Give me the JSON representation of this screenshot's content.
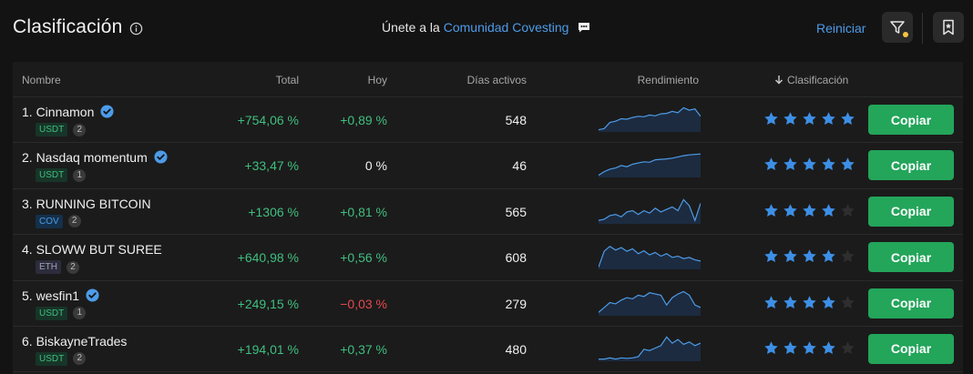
{
  "header": {
    "title": "Clasificación",
    "community_prefix": "Únete a la",
    "community_link": "Comunidad Covesting",
    "reset_label": "Reiniciar"
  },
  "columns": {
    "name": "Nombre",
    "total": "Total",
    "today": "Hoy",
    "days": "Días activos",
    "performance": "Rendimiento",
    "ranking": "Clasificación"
  },
  "colors": {
    "accent": "#4d9be8",
    "positive": "#3fbf7f",
    "negative": "#e5484d",
    "copy_button": "#23a55a",
    "star": "#3d8fe6"
  },
  "copy_label": "Copiar",
  "rows": [
    {
      "rank_name": "1. Cinnamon",
      "verified": true,
      "tag": "USDT",
      "tag_type": "usdt",
      "count": "2",
      "total": "+754,06 %",
      "today": "+0,89 %",
      "today_sign": "pos",
      "days": "548",
      "stars": 5,
      "spark": [
        0.05,
        0.1,
        0.35,
        0.4,
        0.5,
        0.48,
        0.55,
        0.6,
        0.58,
        0.65,
        0.62,
        0.7,
        0.72,
        0.8,
        0.75,
        0.95,
        0.85,
        0.9,
        0.6
      ]
    },
    {
      "rank_name": "2. Nasdaq momentum",
      "verified": true,
      "tag": "USDT",
      "tag_type": "usdt",
      "count": "1",
      "total": "+33,47 %",
      "today": "0 %",
      "today_sign": "neutral",
      "days": "46",
      "stars": 5,
      "spark": [
        0.05,
        0.2,
        0.3,
        0.35,
        0.45,
        0.4,
        0.5,
        0.55,
        0.6,
        0.58,
        0.68,
        0.7,
        0.72,
        0.75,
        0.8,
        0.85,
        0.88,
        0.9,
        0.92
      ]
    },
    {
      "rank_name": "3. RUNNING BITCOIN",
      "verified": false,
      "tag": "COV",
      "tag_type": "cov",
      "count": "2",
      "total": "+1306 %",
      "today": "+0,81 %",
      "today_sign": "pos",
      "days": "565",
      "stars": 4,
      "spark": [
        0.1,
        0.15,
        0.3,
        0.35,
        0.25,
        0.45,
        0.5,
        0.35,
        0.5,
        0.4,
        0.6,
        0.45,
        0.55,
        0.65,
        0.5,
        0.95,
        0.7,
        0.1,
        0.8
      ]
    },
    {
      "rank_name": "4. SLOWW BUT SUREE",
      "verified": false,
      "tag": "ETH",
      "tag_type": "eth",
      "count": "2",
      "total": "+640,98 %",
      "today": "+0,56 %",
      "today_sign": "pos",
      "days": "608",
      "stars": 4,
      "spark": [
        0.05,
        0.7,
        0.9,
        0.75,
        0.85,
        0.7,
        0.8,
        0.6,
        0.72,
        0.55,
        0.65,
        0.5,
        0.6,
        0.45,
        0.5,
        0.4,
        0.45,
        0.35,
        0.3
      ]
    },
    {
      "rank_name": "5. wesfin1",
      "verified": true,
      "tag": "USDT",
      "tag_type": "usdt",
      "count": "1",
      "total": "+249,15 %",
      "today": "−0,03 %",
      "today_sign": "neg",
      "days": "279",
      "stars": 4,
      "spark": [
        0.1,
        0.3,
        0.5,
        0.45,
        0.6,
        0.7,
        0.65,
        0.8,
        0.75,
        0.9,
        0.85,
        0.8,
        0.4,
        0.7,
        0.85,
        0.95,
        0.8,
        0.4,
        0.3
      ]
    },
    {
      "rank_name": "6. BiskayneTrades",
      "verified": false,
      "tag": "USDT",
      "tag_type": "usdt",
      "count": "2",
      "total": "+194,01 %",
      "today": "+0,37 %",
      "today_sign": "pos",
      "days": "480",
      "stars": 4,
      "spark": [
        0.05,
        0.05,
        0.1,
        0.05,
        0.1,
        0.08,
        0.1,
        0.15,
        0.45,
        0.4,
        0.5,
        0.6,
        0.95,
        0.7,
        0.85,
        0.65,
        0.75,
        0.6,
        0.7
      ]
    }
  ]
}
